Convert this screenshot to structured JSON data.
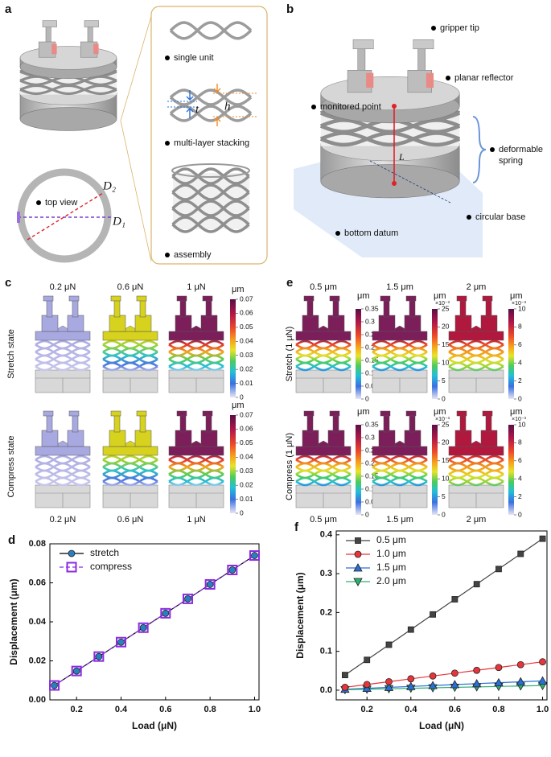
{
  "panels": {
    "a": {
      "label": "a",
      "single_unit": "single unit",
      "stacking": "multi-layer stacking",
      "assembly": "assembly",
      "top_view": "top view",
      "t": "t",
      "h": "h",
      "d2": "D₂",
      "d1": "D₁"
    },
    "b": {
      "label": "b",
      "gripper_tip": "gripper tip",
      "planar_reflector": "planar reflector",
      "monitored_point": "monitored point",
      "deformable_spring": "deformable spring",
      "L": "L",
      "circular_base": "circular base",
      "bottom_datum": "bottom datum"
    },
    "c": {
      "label": "c",
      "loads": [
        "0.2 μN",
        "0.6 μN",
        "1 μN"
      ],
      "rows": [
        "Stretch state",
        "Compress state"
      ],
      "colorbar": {
        "unit": "μm",
        "ticks": [
          0.07,
          0.06,
          0.05,
          0.04,
          0.03,
          0.02,
          0.01,
          0
        ]
      }
    },
    "e": {
      "label": "e",
      "steps": [
        "0.5 μm",
        "1.5 μm",
        "2 μm"
      ],
      "rows": [
        "Stretch (1 μN)",
        "Compress (1 μN)"
      ],
      "colorbars": [
        {
          "unit": "μm",
          "ticks": [
            0.35,
            0.3,
            0.25,
            0.2,
            0.15,
            0.1,
            0.05,
            0
          ]
        },
        {
          "unit": "μm",
          "scale": "×10⁻³",
          "ticks": [
            25,
            20,
            15,
            10,
            5,
            0
          ]
        },
        {
          "unit": "μm",
          "scale": "×10⁻³",
          "ticks": [
            10,
            8,
            6,
            4,
            2,
            0
          ]
        }
      ]
    }
  },
  "chart_data": [
    {
      "type": "line",
      "panel": "d",
      "xlabel": "Load (μN)",
      "ylabel": "Displacement (μm)",
      "x": [
        0.1,
        0.2,
        0.3,
        0.4,
        0.5,
        0.6,
        0.7,
        0.8,
        0.9,
        1.0
      ],
      "series": [
        {
          "name": "stretch",
          "color": "#2a7fc1",
          "line_color": "#000000",
          "line_style": "solid",
          "marker": "circle",
          "marker_filled": true,
          "values": [
            0.0074,
            0.0148,
            0.0222,
            0.0296,
            0.037,
            0.0444,
            0.0518,
            0.0592,
            0.0666,
            0.074
          ]
        },
        {
          "name": "compress",
          "color": "#8a2be2",
          "line_color": "#8a2be2",
          "line_style": "dashed",
          "marker": "square",
          "marker_filled": false,
          "values": [
            0.0074,
            0.0148,
            0.0222,
            0.0296,
            0.037,
            0.0444,
            0.0518,
            0.0592,
            0.0666,
            0.074
          ]
        }
      ],
      "xlim": [
        0.08,
        1.02
      ],
      "ylim": [
        0,
        0.08
      ],
      "xticks": [
        {
          "value": 0.2,
          "label": "0.2"
        },
        {
          "value": 0.4,
          "label": "0.4"
        },
        {
          "value": 0.6,
          "label": "0.6"
        },
        {
          "value": 0.8,
          "label": "0.8"
        },
        {
          "value": 1.0,
          "label": "1.0"
        }
      ],
      "yticks": [
        {
          "value": 0,
          "label": "0.00"
        },
        {
          "value": 0.02,
          "label": "0.02"
        },
        {
          "value": 0.04,
          "label": "0.04"
        },
        {
          "value": 0.06,
          "label": "0.06"
        },
        {
          "value": 0.08,
          "label": "0.08"
        }
      ],
      "legend": "upper left"
    },
    {
      "type": "line",
      "panel": "f",
      "xlabel": "Load (μN)",
      "ylabel": "Displacement (μm)",
      "x": [
        0.1,
        0.2,
        0.3,
        0.4,
        0.5,
        0.6,
        0.7,
        0.8,
        0.9,
        1.0
      ],
      "series": [
        {
          "name": "0.5 μm",
          "color": "#444444",
          "line_color": "#444444",
          "line_style": "solid",
          "marker": "square",
          "marker_filled": true,
          "values": [
            0.039,
            0.078,
            0.117,
            0.156,
            0.195,
            0.234,
            0.273,
            0.312,
            0.351,
            0.39
          ]
        },
        {
          "name": "1.0 μm",
          "color": "#e8353b",
          "line_color": "#e8353b",
          "line_style": "solid",
          "marker": "circle",
          "marker_filled": true,
          "values": [
            0.0073,
            0.0146,
            0.0219,
            0.0292,
            0.0365,
            0.0438,
            0.0511,
            0.0584,
            0.0657,
            0.073
          ]
        },
        {
          "name": "1.5 μm",
          "color": "#2a6fd6",
          "line_color": "#2a6fd6",
          "line_style": "solid",
          "marker": "triangle",
          "marker_filled": true,
          "values": [
            0.0024,
            0.0048,
            0.0072,
            0.0096,
            0.012,
            0.0144,
            0.0168,
            0.0192,
            0.0216,
            0.024
          ]
        },
        {
          "name": "2.0 μm",
          "color": "#2eb070",
          "line_color": "#2eb070",
          "line_style": "solid",
          "marker": "triangle-down",
          "marker_filled": true,
          "values": [
            0.0012,
            0.0024,
            0.0036,
            0.0048,
            0.006,
            0.0072,
            0.0084,
            0.0096,
            0.0108,
            0.012
          ]
        }
      ],
      "xlim": [
        0.06,
        1.02
      ],
      "ylim": [
        -0.025,
        0.41
      ],
      "xticks": [
        {
          "value": 0.2,
          "label": "0.2"
        },
        {
          "value": 0.4,
          "label": "0.4"
        },
        {
          "value": 0.6,
          "label": "0.6"
        },
        {
          "value": 0.8,
          "label": "0.8"
        },
        {
          "value": 1.0,
          "label": "1.0"
        }
      ],
      "yticks": [
        {
          "value": 0,
          "label": "0.0"
        },
        {
          "value": 0.1,
          "label": "0.1"
        },
        {
          "value": 0.2,
          "label": "0.2"
        },
        {
          "value": 0.3,
          "label": "0.3"
        },
        {
          "value": 0.4,
          "label": "0.4"
        }
      ],
      "legend": "upper left"
    }
  ]
}
